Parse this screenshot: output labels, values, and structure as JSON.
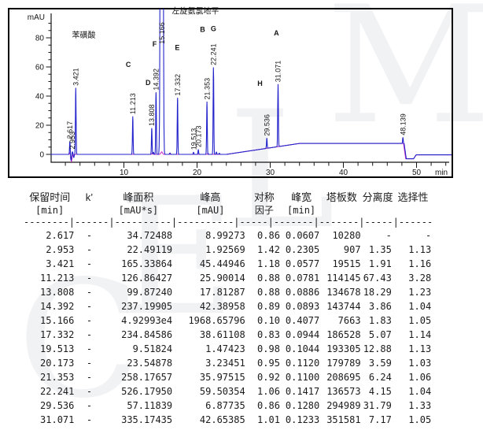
{
  "watermark": {
    "letters": [
      "C",
      "E",
      "L",
      "M"
    ]
  },
  "chart_data": {
    "type": "line",
    "title": "",
    "xlabel": "min",
    "ylabel": "mAU",
    "xlim": [
      0,
      55
    ],
    "ylim": [
      -8,
      100
    ],
    "x_ticks": [
      10,
      20,
      30,
      40,
      50
    ],
    "y_ticks": [
      0,
      20,
      40,
      60,
      80
    ],
    "grid": false,
    "trace_color": "#2323cb",
    "secondary_trace_color": "#cf2bc4",
    "peaks": [
      {
        "time": 2.617,
        "height_mAU": 8.99273,
        "width_min": 0.0607,
        "label": "2.617"
      },
      {
        "time": 2.953,
        "height_mAU": 1.92569,
        "width_min": 0.2305,
        "label": "2.953"
      },
      {
        "time": 3.421,
        "height_mAU": 45.44946,
        "width_min": 0.0577,
        "label": "3.421"
      },
      {
        "time": 11.213,
        "height_mAU": 25.90014,
        "width_min": 0.0781,
        "label": "11.213"
      },
      {
        "time": 13.808,
        "height_mAU": 17.81287,
        "width_min": 0.0886,
        "label": "13.808"
      },
      {
        "time": 14.392,
        "height_mAU": 42.38958,
        "width_min": 0.0893,
        "label": "14.392"
      },
      {
        "time": 15.166,
        "height_mAU": 1968.65796,
        "width_min": 0.4077,
        "label": "15.166",
        "clipped": true
      },
      {
        "time": 17.332,
        "height_mAU": 38.61108,
        "width_min": 0.0944,
        "label": "17.332"
      },
      {
        "time": 19.513,
        "height_mAU": 1.47423,
        "width_min": 0.1044,
        "label": "19.513"
      },
      {
        "time": 20.173,
        "height_mAU": 3.23451,
        "width_min": 0.112,
        "label": "20.173"
      },
      {
        "time": 21.353,
        "height_mAU": 35.97515,
        "width_min": 0.11,
        "label": "21.353"
      },
      {
        "time": 22.241,
        "height_mAU": 59.50354,
        "width_min": 0.1417,
        "label": "22.241"
      },
      {
        "time": 29.536,
        "height_mAU": 6.87735,
        "width_min": 0.128,
        "label": "29.536"
      },
      {
        "time": 31.071,
        "height_mAU": 42.65385,
        "width_min": 0.1233,
        "label": "31.071"
      },
      {
        "time": 48.139,
        "height_mAU": 4.0,
        "width_min": 0.09,
        "label": "48.139"
      }
    ],
    "letters": [
      {
        "label": "C",
        "t": 10.6,
        "mAU": 60
      },
      {
        "label": "D",
        "t": 13.3,
        "mAU": 47.5
      },
      {
        "label": "F",
        "t": 14.2,
        "mAU": 74
      },
      {
        "label": "E",
        "t": 17.3,
        "mAU": 71.5
      },
      {
        "label": "B",
        "t": 20.75,
        "mAU": 84
      },
      {
        "label": "G",
        "t": 22.25,
        "mAU": 84.5
      },
      {
        "label": "H",
        "t": 28.6,
        "mAU": 47
      },
      {
        "label": "A",
        "t": 30.85,
        "mAU": 81.5
      }
    ],
    "annotations": [
      {
        "text": "苯磺酸",
        "t": 2.9,
        "mAU": 80
      },
      {
        "text": "左旋氨氯地平",
        "t": 16.55,
        "mAU": 96.5
      }
    ]
  },
  "table": {
    "headers_line1": [
      "保留时间",
      "k’",
      "峰面积",
      "峰高",
      "对称",
      "峰宽",
      "塔板数",
      "分离度",
      "选择性"
    ],
    "headers_line2": [
      "[min]",
      "",
      "[mAU*s]",
      "[mAU]",
      "因子",
      "[min]",
      "",
      "",
      ""
    ],
    "separator": "--------|------|----------|----------|-----|-------|-------|-----|------",
    "rows": [
      [
        "2.617",
        "-",
        "34.72488",
        "8.99273",
        "0.86",
        "0.0607",
        "10280",
        "-",
        "-"
      ],
      [
        "2.953",
        "-",
        "22.49119",
        "1.92569",
        "1.42",
        "0.2305",
        "907",
        "1.35",
        "1.13"
      ],
      [
        "3.421",
        "-",
        "165.33864",
        "45.44946",
        "1.18",
        "0.0577",
        "19515",
        "1.91",
        "1.16"
      ],
      [
        "11.213",
        "-",
        "126.86427",
        "25.90014",
        "0.88",
        "0.0781",
        "114145",
        "67.43",
        "3.28"
      ],
      [
        "13.808",
        "-",
        "99.87240",
        "17.81287",
        "0.88",
        "0.0886",
        "134678",
        "18.29",
        "1.23"
      ],
      [
        "14.392",
        "-",
        "237.19905",
        "42.38958",
        "0.89",
        "0.0893",
        "143744",
        "3.86",
        "1.04"
      ],
      [
        "15.166",
        "-",
        "4.92993e4",
        "1968.65796",
        "0.10",
        "0.4077",
        "7663",
        "1.83",
        "1.05"
      ],
      [
        "17.332",
        "-",
        "234.84586",
        "38.61108",
        "0.83",
        "0.0944",
        "186528",
        "5.07",
        "1.14"
      ],
      [
        "19.513",
        "-",
        "9.51824",
        "1.47423",
        "0.98",
        "0.1044",
        "193305",
        "12.88",
        "1.13"
      ],
      [
        "20.173",
        "-",
        "23.54878",
        "3.23451",
        "0.95",
        "0.1120",
        "179789",
        "3.59",
        "1.03"
      ],
      [
        "21.353",
        "-",
        "258.17657",
        "35.97515",
        "0.92",
        "0.1100",
        "208695",
        "6.24",
        "1.06"
      ],
      [
        "22.241",
        "-",
        "526.17950",
        "59.50354",
        "1.06",
        "0.1417",
        "136573",
        "4.15",
        "1.04"
      ],
      [
        "29.536",
        "-",
        "57.11839",
        "6.87735",
        "0.86",
        "0.1280",
        "294989",
        "31.79",
        "1.33"
      ],
      [
        "31.071",
        "-",
        "335.17435",
        "42.65385",
        "1.01",
        "0.1233",
        "351581",
        "7.17",
        "1.05"
      ]
    ]
  }
}
